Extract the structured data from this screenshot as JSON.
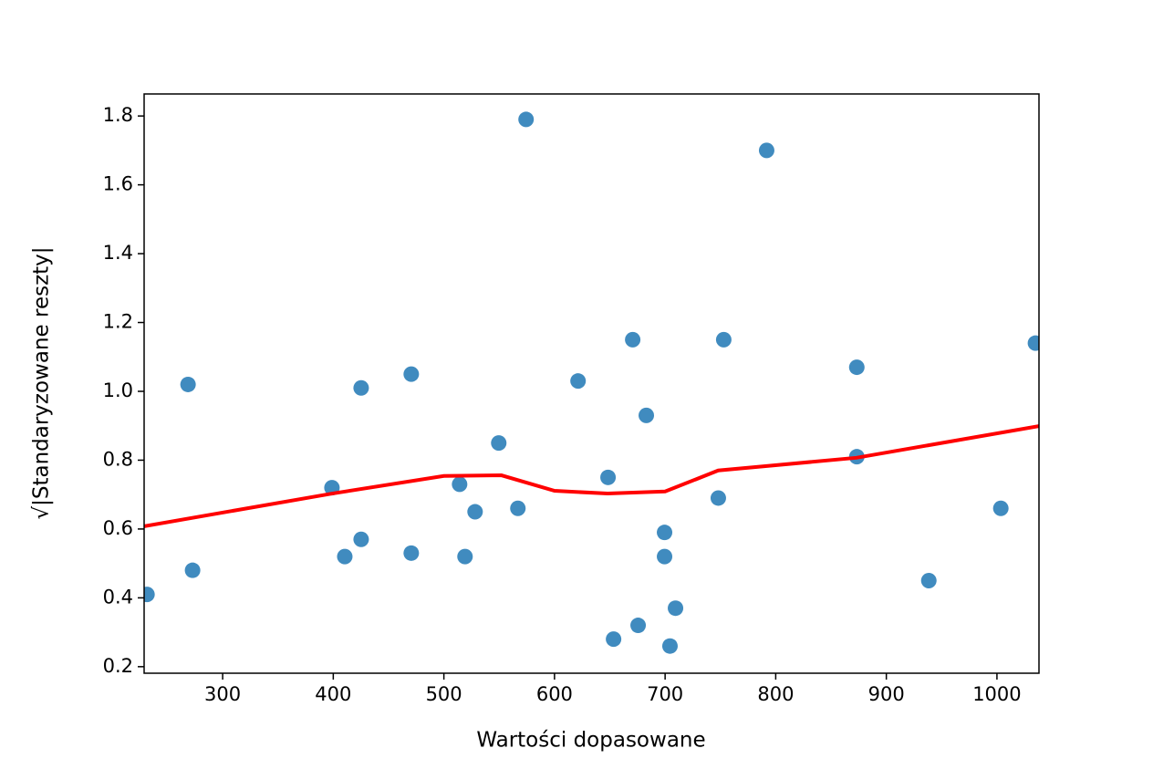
{
  "chart_data": {
    "type": "scatter",
    "xlabel": "Wartości dopasowane",
    "ylabel": "√|Standaryzowane reszty|",
    "xlim": [
      229,
      1038
    ],
    "ylim": [
      0.181,
      1.864
    ],
    "xticks": [
      300,
      400,
      500,
      600,
      700,
      800,
      900,
      1000
    ],
    "yticks": [
      0.2,
      0.4,
      0.6,
      0.8,
      {
        "value": 1,
        "label": "1.0"
      },
      1.2,
      1.4,
      1.6,
      1.8
    ],
    "series": [
      {
        "type": "scatter",
        "color": "#1f77b4",
        "x": [
          231.6,
          268.7,
          272.8,
          398.8,
          410.4,
          425.2,
          425.2,
          470.5,
          470.5,
          514.2,
          519.1,
          528.2,
          549.6,
          566.9,
          574.3,
          621.3,
          648.4,
          653.4,
          670.7,
          675.6,
          683.0,
          699.5,
          699.5,
          704.4,
          709.4,
          748.1,
          753.0,
          791.8,
          873.3,
          873.3,
          938.4,
          1003.5,
          1034.8
        ],
        "values": [
          0.41,
          1.02,
          0.48,
          0.72,
          0.52,
          1.01,
          0.57,
          1.05,
          0.53,
          0.73,
          0.52,
          0.65,
          0.85,
          0.66,
          1.79,
          1.03,
          0.75,
          0.28,
          1.15,
          0.32,
          0.93,
          0.59,
          0.52,
          0.26,
          0.37,
          0.69,
          1.15,
          1.7,
          1.07,
          0.81,
          0.45,
          0.66,
          1.14
        ]
      },
      {
        "type": "line",
        "color": "#ff0000",
        "x": [
          229,
          399,
          500,
          552,
          600,
          648,
          700,
          748,
          873,
          1038
        ],
        "values": [
          0.608,
          0.703,
          0.754,
          0.756,
          0.711,
          0.703,
          0.709,
          0.77,
          0.807,
          0.899
        ]
      }
    ]
  }
}
